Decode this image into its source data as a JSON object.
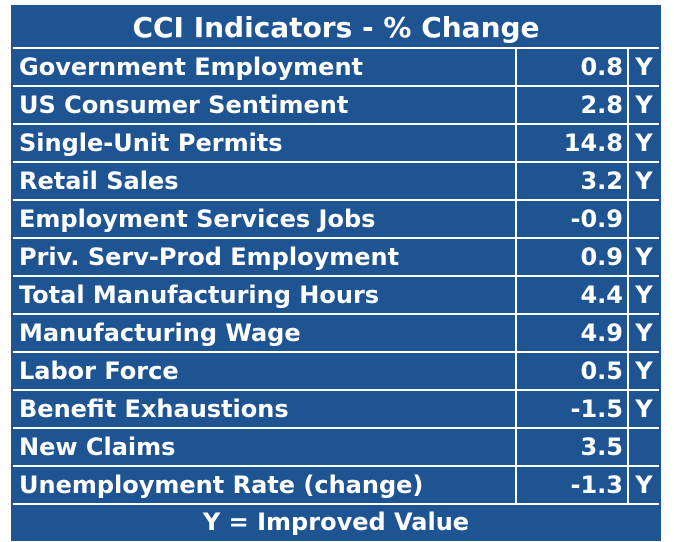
{
  "table": {
    "title": "CCI Indicators - % Change",
    "rows": [
      {
        "label": "Government Employment",
        "value": 0.8,
        "flag": "Y"
      },
      {
        "label": "US Consumer Sentiment",
        "value": 2.8,
        "flag": "Y"
      },
      {
        "label": "Single-Unit Permits",
        "value": 14.8,
        "flag": "Y"
      },
      {
        "label": "Retail Sales",
        "value": 3.2,
        "flag": "Y"
      },
      {
        "label": "Employment Services Jobs",
        "value": -0.9
      },
      {
        "label": "Priv. Serv-Prod Employment",
        "value": 0.9,
        "flag": "Y"
      },
      {
        "label": "Total Manufacturing Hours",
        "value": 4.4,
        "flag": "Y"
      },
      {
        "label": "Manufacturing Wage",
        "value": 4.9,
        "flag": "Y"
      },
      {
        "label": "Labor Force",
        "value": 0.5,
        "flag": "Y"
      },
      {
        "label": "Benefit Exhaustions",
        "value": -1.5,
        "flag": "Y"
      },
      {
        "label": "New Claims",
        "value": 3.5
      },
      {
        "label": "Unemployment Rate (change)",
        "value": -1.3,
        "flag": "Y"
      }
    ],
    "footer": "Y = Improved Value"
  }
}
